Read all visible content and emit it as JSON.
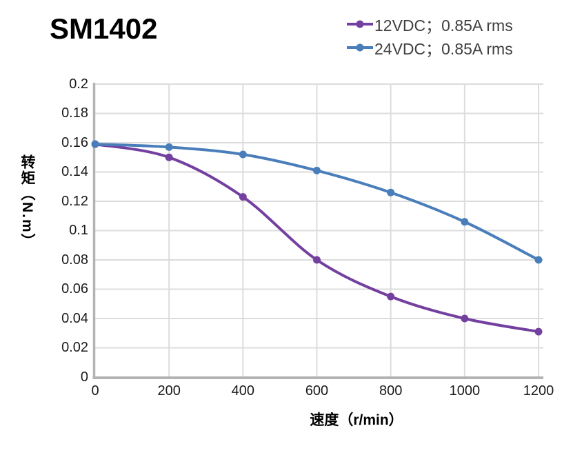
{
  "page": {
    "title": "SM1402"
  },
  "chart_data": {
    "type": "line",
    "title": "SM1402",
    "xlabel": "速度（r/min）",
    "ylabel": "转矩（N.m）",
    "x": [
      0,
      200,
      400,
      600,
      800,
      1000,
      1200
    ],
    "series": [
      {
        "name": "12VDC；0.85A rms",
        "color": "#7440A0",
        "values": [
          0.159,
          0.15,
          0.123,
          0.08,
          0.055,
          0.04,
          0.031
        ]
      },
      {
        "name": "24VDC；0.85A rms",
        "color": "#4A7EBB",
        "values": [
          0.159,
          0.157,
          0.152,
          0.141,
          0.126,
          0.106,
          0.08
        ]
      }
    ],
    "xticks": [
      "0",
      "200",
      "400",
      "600",
      "800",
      "1000",
      "1200"
    ],
    "yticks": [
      "0",
      "0.02",
      "0.04",
      "0.06",
      "0.08",
      "0.1",
      "0.12",
      "0.14",
      "0.16",
      "0.18",
      "0.2"
    ],
    "xlim": [
      0,
      1200
    ],
    "ylim": [
      0,
      0.2
    ],
    "grid": true,
    "legend_position": "top-right",
    "marker": "circle",
    "colors": {
      "grid": "#DCDCDC",
      "axis": "#B3B3B3",
      "tick_text": "#1a1a1a",
      "title_text": "#000000",
      "legend_text": "#3f3f3f"
    }
  }
}
